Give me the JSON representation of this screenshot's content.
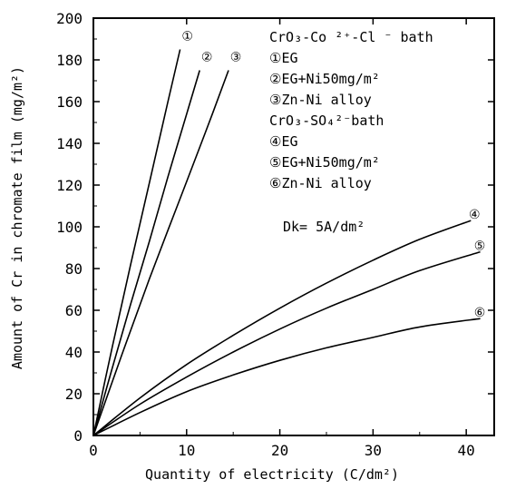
{
  "chart_data": {
    "type": "line",
    "xlabel": "Quantity of electricity (C/dm²)",
    "ylabel": "Amount of Cr in chromate film (mg/m²)",
    "xlim": [
      0,
      43
    ],
    "ylim": [
      0,
      200
    ],
    "x_ticks": [
      0,
      10,
      20,
      30,
      40
    ],
    "y_ticks": [
      0,
      20,
      40,
      60,
      80,
      100,
      120,
      140,
      160,
      180,
      200
    ],
    "grid": false,
    "legend_position": "top-right",
    "legend": [
      {
        "text": "CrO₃-Co ²⁺-Cl ⁻ bath",
        "kind": "header"
      },
      {
        "text": "①EG",
        "kind": "entry"
      },
      {
        "text": "②EG+Ni50mg/m²",
        "kind": "entry"
      },
      {
        "text": "③Zn-Ni alloy",
        "kind": "entry"
      },
      {
        "text": "CrO₃-SO₄²⁻bath",
        "kind": "header"
      },
      {
        "text": "④EG",
        "kind": "entry"
      },
      {
        "text": "⑤EG+Ni50mg/m²",
        "kind": "entry"
      },
      {
        "text": "⑥Zn-Ni alloy",
        "kind": "entry"
      }
    ],
    "annotation": "Dk= 5A/dm²",
    "series": [
      {
        "marker": "①",
        "x": [
          0,
          2,
          4,
          6,
          8,
          9.3
        ],
        "y": [
          0,
          42,
          82,
          121,
          160,
          185
        ]
      },
      {
        "marker": "②",
        "x": [
          0,
          2,
          4,
          6,
          8,
          10,
          11.4
        ],
        "y": [
          0,
          32,
          63,
          93,
          124,
          154,
          175
        ]
      },
      {
        "marker": "③",
        "x": [
          0,
          3,
          6,
          9,
          12,
          14.5
        ],
        "y": [
          0,
          38,
          75,
          110,
          145,
          175
        ]
      },
      {
        "marker": "④",
        "x": [
          0,
          5,
          10,
          15,
          20,
          25,
          30,
          35,
          40.5
        ],
        "y": [
          0,
          18,
          34,
          48,
          61,
          73,
          84,
          94,
          103
        ]
      },
      {
        "marker": "⑤",
        "x": [
          0,
          5,
          10,
          15,
          20,
          25,
          30,
          35,
          41.5
        ],
        "y": [
          0,
          15,
          28,
          40,
          51,
          61,
          70,
          79,
          88
        ]
      },
      {
        "marker": "⑥",
        "x": [
          0,
          5,
          10,
          15,
          20,
          25,
          30,
          35,
          41.5
        ],
        "y": [
          0,
          11,
          21,
          29,
          36,
          42,
          47,
          52,
          56
        ]
      }
    ]
  }
}
